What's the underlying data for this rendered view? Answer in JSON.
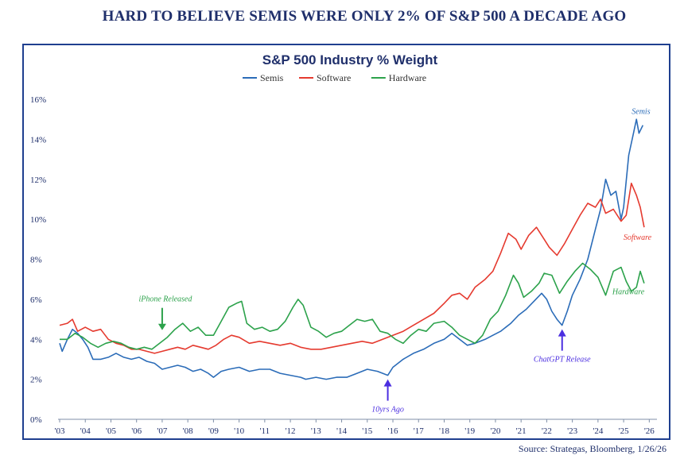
{
  "headline": "HARD TO BELIEVE SEMIS WERE ONLY 2% OF S&P 500 A DECADE AGO",
  "source": "Source: Strategas, Bloomberg, 1/26/26",
  "chart_data": {
    "type": "line",
    "title": "S&P 500 Industry % Weight",
    "xlabel": "",
    "ylabel": "",
    "ylim": [
      0,
      16
    ],
    "xlim": [
      2003.0,
      2026.3
    ],
    "grid": false,
    "legend_position": "top-center",
    "x_tick_labels": [
      "'03",
      "'04",
      "'05",
      "'06",
      "'07",
      "'08",
      "'09",
      "'10",
      "'11",
      "'12",
      "'13",
      "'14",
      "'15",
      "'16",
      "'17",
      "'18",
      "'19",
      "'20",
      "'21",
      "'22",
      "'23",
      "'24",
      "'25",
      "'26"
    ],
    "y_tick_labels": [
      "0%",
      "2%",
      "4%",
      "6%",
      "8%",
      "10%",
      "12%",
      "14%",
      "16%"
    ],
    "series": [
      {
        "name": "Semis",
        "color": "#2b6cb8",
        "end_label": "Semis",
        "points": [
          [
            2003.0,
            3.8
          ],
          [
            2003.1,
            3.4
          ],
          [
            2003.3,
            4.0
          ],
          [
            2003.5,
            4.5
          ],
          [
            2003.7,
            4.3
          ],
          [
            2003.9,
            4.0
          ],
          [
            2004.1,
            3.6
          ],
          [
            2004.3,
            3.0
          ],
          [
            2004.6,
            3.0
          ],
          [
            2004.9,
            3.1
          ],
          [
            2005.2,
            3.3
          ],
          [
            2005.5,
            3.1
          ],
          [
            2005.8,
            3.0
          ],
          [
            2006.1,
            3.1
          ],
          [
            2006.4,
            2.9
          ],
          [
            2006.7,
            2.8
          ],
          [
            2007.0,
            2.5
          ],
          [
            2007.3,
            2.6
          ],
          [
            2007.6,
            2.7
          ],
          [
            2007.9,
            2.6
          ],
          [
            2008.2,
            2.4
          ],
          [
            2008.5,
            2.5
          ],
          [
            2008.8,
            2.3
          ],
          [
            2009.0,
            2.1
          ],
          [
            2009.3,
            2.4
          ],
          [
            2009.6,
            2.5
          ],
          [
            2010.0,
            2.6
          ],
          [
            2010.4,
            2.4
          ],
          [
            2010.8,
            2.5
          ],
          [
            2011.2,
            2.5
          ],
          [
            2011.6,
            2.3
          ],
          [
            2012.0,
            2.2
          ],
          [
            2012.4,
            2.1
          ],
          [
            2012.6,
            2.0
          ],
          [
            2013.0,
            2.1
          ],
          [
            2013.4,
            2.0
          ],
          [
            2013.8,
            2.1
          ],
          [
            2014.2,
            2.1
          ],
          [
            2014.6,
            2.3
          ],
          [
            2015.0,
            2.5
          ],
          [
            2015.4,
            2.4
          ],
          [
            2015.8,
            2.2
          ],
          [
            2016.0,
            2.6
          ],
          [
            2016.4,
            3.0
          ],
          [
            2016.8,
            3.3
          ],
          [
            2017.2,
            3.5
          ],
          [
            2017.6,
            3.8
          ],
          [
            2018.0,
            4.0
          ],
          [
            2018.3,
            4.3
          ],
          [
            2018.6,
            4.0
          ],
          [
            2018.9,
            3.7
          ],
          [
            2019.2,
            3.8
          ],
          [
            2019.6,
            4.0
          ],
          [
            2019.9,
            4.2
          ],
          [
            2020.2,
            4.4
          ],
          [
            2020.6,
            4.8
          ],
          [
            2020.9,
            5.2
          ],
          [
            2021.2,
            5.5
          ],
          [
            2021.5,
            5.9
          ],
          [
            2021.8,
            6.3
          ],
          [
            2022.0,
            6.0
          ],
          [
            2022.2,
            5.4
          ],
          [
            2022.4,
            5.0
          ],
          [
            2022.6,
            4.7
          ],
          [
            2022.8,
            5.4
          ],
          [
            2023.0,
            6.2
          ],
          [
            2023.3,
            7.0
          ],
          [
            2023.6,
            8.0
          ],
          [
            2023.9,
            9.5
          ],
          [
            2024.1,
            10.5
          ],
          [
            2024.3,
            12.0
          ],
          [
            2024.5,
            11.2
          ],
          [
            2024.7,
            11.4
          ],
          [
            2024.9,
            10.0
          ],
          [
            2025.0,
            10.6
          ],
          [
            2025.2,
            13.2
          ],
          [
            2025.4,
            14.4
          ],
          [
            2025.5,
            15.0
          ],
          [
            2025.6,
            14.3
          ],
          [
            2025.75,
            14.7
          ]
        ]
      },
      {
        "name": "Software",
        "color": "#e53a2f",
        "end_label": "Software",
        "points": [
          [
            2003.0,
            4.7
          ],
          [
            2003.3,
            4.8
          ],
          [
            2003.5,
            5.0
          ],
          [
            2003.7,
            4.4
          ],
          [
            2004.0,
            4.6
          ],
          [
            2004.3,
            4.4
          ],
          [
            2004.6,
            4.5
          ],
          [
            2004.9,
            4.0
          ],
          [
            2005.2,
            3.8
          ],
          [
            2005.5,
            3.7
          ],
          [
            2005.8,
            3.5
          ],
          [
            2006.1,
            3.5
          ],
          [
            2006.4,
            3.4
          ],
          [
            2006.7,
            3.3
          ],
          [
            2007.0,
            3.4
          ],
          [
            2007.3,
            3.5
          ],
          [
            2007.6,
            3.6
          ],
          [
            2007.9,
            3.5
          ],
          [
            2008.2,
            3.7
          ],
          [
            2008.5,
            3.6
          ],
          [
            2008.8,
            3.5
          ],
          [
            2009.1,
            3.7
          ],
          [
            2009.4,
            4.0
          ],
          [
            2009.7,
            4.2
          ],
          [
            2010.0,
            4.1
          ],
          [
            2010.4,
            3.8
          ],
          [
            2010.8,
            3.9
          ],
          [
            2011.2,
            3.8
          ],
          [
            2011.6,
            3.7
          ],
          [
            2012.0,
            3.8
          ],
          [
            2012.4,
            3.6
          ],
          [
            2012.8,
            3.5
          ],
          [
            2013.2,
            3.5
          ],
          [
            2013.6,
            3.6
          ],
          [
            2014.0,
            3.7
          ],
          [
            2014.4,
            3.8
          ],
          [
            2014.8,
            3.9
          ],
          [
            2015.2,
            3.8
          ],
          [
            2015.6,
            4.0
          ],
          [
            2016.0,
            4.2
          ],
          [
            2016.4,
            4.4
          ],
          [
            2016.8,
            4.7
          ],
          [
            2017.2,
            5.0
          ],
          [
            2017.6,
            5.3
          ],
          [
            2018.0,
            5.8
          ],
          [
            2018.3,
            6.2
          ],
          [
            2018.6,
            6.3
          ],
          [
            2018.9,
            6.0
          ],
          [
            2019.2,
            6.6
          ],
          [
            2019.6,
            7.0
          ],
          [
            2019.9,
            7.4
          ],
          [
            2020.2,
            8.3
          ],
          [
            2020.5,
            9.3
          ],
          [
            2020.8,
            9.0
          ],
          [
            2021.0,
            8.5
          ],
          [
            2021.3,
            9.2
          ],
          [
            2021.6,
            9.6
          ],
          [
            2021.9,
            9.0
          ],
          [
            2022.1,
            8.6
          ],
          [
            2022.4,
            8.2
          ],
          [
            2022.7,
            8.8
          ],
          [
            2023.0,
            9.5
          ],
          [
            2023.3,
            10.2
          ],
          [
            2023.6,
            10.8
          ],
          [
            2023.9,
            10.6
          ],
          [
            2024.1,
            11.0
          ],
          [
            2024.3,
            10.3
          ],
          [
            2024.6,
            10.5
          ],
          [
            2024.9,
            9.9
          ],
          [
            2025.1,
            10.2
          ],
          [
            2025.3,
            11.8
          ],
          [
            2025.5,
            11.2
          ],
          [
            2025.65,
            10.6
          ],
          [
            2025.8,
            9.6
          ]
        ]
      },
      {
        "name": "Hardware",
        "color": "#2ca24b",
        "end_label": "Hardware",
        "points": [
          [
            2003.0,
            4.0
          ],
          [
            2003.3,
            4.0
          ],
          [
            2003.6,
            4.3
          ],
          [
            2003.9,
            4.1
          ],
          [
            2004.2,
            3.8
          ],
          [
            2004.5,
            3.6
          ],
          [
            2004.8,
            3.8
          ],
          [
            2005.1,
            3.9
          ],
          [
            2005.4,
            3.8
          ],
          [
            2005.7,
            3.6
          ],
          [
            2006.0,
            3.5
          ],
          [
            2006.3,
            3.6
          ],
          [
            2006.6,
            3.5
          ],
          [
            2006.9,
            3.8
          ],
          [
            2007.2,
            4.1
          ],
          [
            2007.5,
            4.5
          ],
          [
            2007.8,
            4.8
          ],
          [
            2008.1,
            4.4
          ],
          [
            2008.4,
            4.6
          ],
          [
            2008.7,
            4.2
          ],
          [
            2009.0,
            4.2
          ],
          [
            2009.3,
            4.9
          ],
          [
            2009.6,
            5.6
          ],
          [
            2009.9,
            5.8
          ],
          [
            2010.1,
            5.9
          ],
          [
            2010.3,
            4.8
          ],
          [
            2010.6,
            4.5
          ],
          [
            2010.9,
            4.6
          ],
          [
            2011.2,
            4.4
          ],
          [
            2011.5,
            4.5
          ],
          [
            2011.8,
            4.9
          ],
          [
            2012.1,
            5.6
          ],
          [
            2012.3,
            6.0
          ],
          [
            2012.5,
            5.7
          ],
          [
            2012.8,
            4.6
          ],
          [
            2013.1,
            4.4
          ],
          [
            2013.4,
            4.1
          ],
          [
            2013.7,
            4.3
          ],
          [
            2014.0,
            4.4
          ],
          [
            2014.3,
            4.7
          ],
          [
            2014.6,
            5.0
          ],
          [
            2014.9,
            4.9
          ],
          [
            2015.2,
            5.0
          ],
          [
            2015.5,
            4.4
          ],
          [
            2015.8,
            4.3
          ],
          [
            2016.1,
            4.0
          ],
          [
            2016.4,
            3.8
          ],
          [
            2016.7,
            4.2
          ],
          [
            2017.0,
            4.5
          ],
          [
            2017.3,
            4.4
          ],
          [
            2017.6,
            4.8
          ],
          [
            2018.0,
            4.9
          ],
          [
            2018.3,
            4.6
          ],
          [
            2018.6,
            4.2
          ],
          [
            2018.9,
            4.0
          ],
          [
            2019.2,
            3.8
          ],
          [
            2019.5,
            4.2
          ],
          [
            2019.8,
            5.0
          ],
          [
            2020.1,
            5.4
          ],
          [
            2020.4,
            6.2
          ],
          [
            2020.7,
            7.2
          ],
          [
            2020.9,
            6.8
          ],
          [
            2021.1,
            6.1
          ],
          [
            2021.4,
            6.4
          ],
          [
            2021.7,
            6.8
          ],
          [
            2021.9,
            7.3
          ],
          [
            2022.2,
            7.2
          ],
          [
            2022.5,
            6.3
          ],
          [
            2022.8,
            6.9
          ],
          [
            2023.1,
            7.4
          ],
          [
            2023.4,
            7.8
          ],
          [
            2023.7,
            7.5
          ],
          [
            2024.0,
            7.1
          ],
          [
            2024.3,
            6.2
          ],
          [
            2024.6,
            7.4
          ],
          [
            2024.9,
            7.6
          ],
          [
            2025.1,
            6.9
          ],
          [
            2025.3,
            6.4
          ],
          [
            2025.5,
            6.6
          ],
          [
            2025.65,
            7.4
          ],
          [
            2025.8,
            6.8
          ]
        ]
      }
    ],
    "annotations": [
      {
        "text": "iPhone Released",
        "x": 2007.0,
        "y": 4.3,
        "color": "#2ca24b"
      },
      {
        "text": "10yrs Ago",
        "x": 2015.8,
        "y": 2.2,
        "color": "#4b2ee0"
      },
      {
        "text": "ChatGPT Release",
        "x": 2022.6,
        "y": 4.7,
        "color": "#4b2ee0"
      }
    ]
  }
}
